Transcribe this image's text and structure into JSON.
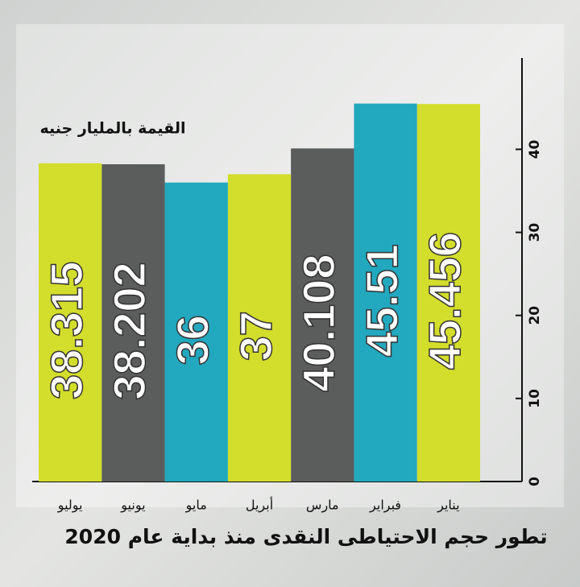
{
  "chart_data": {
    "type": "bar",
    "title": "تطور حجم الاحتياطى النقدى منذ بداية عام 2020",
    "y_axis_label": "القيمة بالمليار جنيه",
    "categories": [
      "يناير",
      "فبراير",
      "مارس",
      "أبريل",
      "مايو",
      "يونيو",
      "يوليو"
    ],
    "values": [
      45.456,
      45.51,
      40.108,
      37,
      36,
      38.202,
      38.315
    ],
    "colors": [
      "#d3dd2b",
      "#22a8bf",
      "#5b5c5c",
      "#d3dd2b",
      "#22a8bf",
      "#5b5c5c",
      "#d3dd2b"
    ],
    "direction": "rtl",
    "ylim": [
      0,
      51
    ],
    "yticks": [
      0,
      10,
      20,
      30,
      40
    ],
    "grid": false
  }
}
